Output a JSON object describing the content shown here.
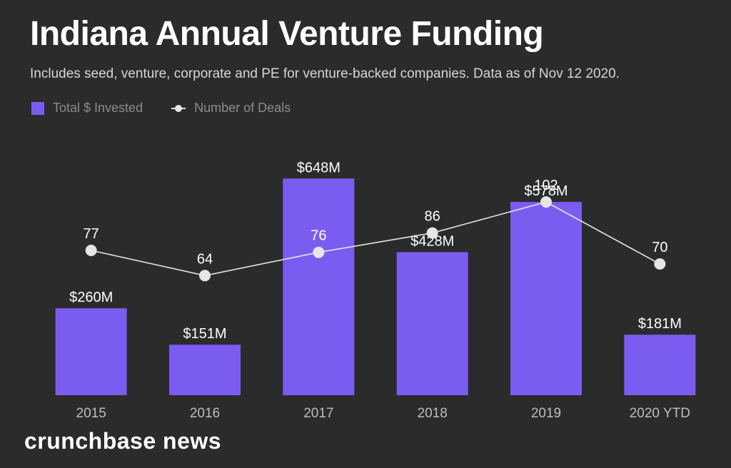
{
  "chart_data": {
    "type": "bar",
    "title": "Indiana Annual Venture Funding",
    "subtitle": "Includes seed, venture, corporate and PE for venture-backed companies. Data as of Nov 12 2020.",
    "categories": [
      "2015",
      "2016",
      "2017",
      "2018",
      "2019",
      "2020 YTD"
    ],
    "series": [
      {
        "name": "Total $ Invested",
        "type": "bar",
        "values": [
          260,
          151,
          648,
          428,
          578,
          181
        ],
        "labels": [
          "$260M",
          "$151M",
          "$648M",
          "$428M",
          "$578M",
          "$181M"
        ],
        "color": "#7b5cf0"
      },
      {
        "name": "Number of Deals",
        "type": "line",
        "values": [
          77,
          64,
          76,
          86,
          102,
          70
        ],
        "labels": [
          "77",
          "64",
          "76",
          "86",
          "102",
          "70"
        ],
        "color": "#e6e6e6"
      }
    ],
    "bar_ylim": [
      0,
      800
    ],
    "line_ylim": [
      0,
      140
    ],
    "grid": false,
    "legend_position": "top-left"
  },
  "brand": "crunchbase news"
}
